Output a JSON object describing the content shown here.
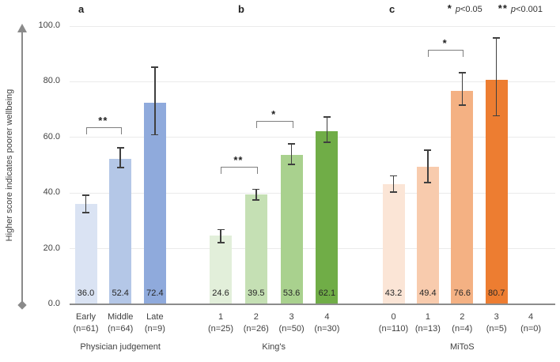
{
  "figure": {
    "panel_labels": [
      "a",
      "b",
      "c"
    ],
    "legend": {
      "items": [
        {
          "stars": "*",
          "p": "p",
          "rest": "<0.05"
        },
        {
          "stars": "**",
          "p": "p",
          "rest": "<0.001"
        }
      ]
    },
    "y_axis": {
      "title": "Higher score indicates poorer wellbeing",
      "ticks": [
        {
          "label": "0.0",
          "value": 0
        },
        {
          "label": "20.0",
          "value": 20
        },
        {
          "label": "40.0",
          "value": 40
        },
        {
          "label": "60.0",
          "value": 60
        },
        {
          "label": "80.0",
          "value": 80
        },
        {
          "label": "100.0",
          "value": 100
        }
      ]
    }
  },
  "chart_data": {
    "type": "bar",
    "ylabel": "Higher score indicates poorer wellbeing",
    "ylim": [
      0,
      100
    ],
    "grid": true,
    "legend_notes": [
      "* p<0.05",
      "** p<0.001"
    ],
    "value_labels_shown": true,
    "groups": [
      {
        "name": "Physician judgement",
        "bars": [
          {
            "category": "Early",
            "n": "(n=61)",
            "value": 36.0,
            "err_up": 3.2,
            "err_down": 3.0,
            "color": "#dae3f3"
          },
          {
            "category": "Middle",
            "n": "(n=64)",
            "value": 52.4,
            "err_up": 3.8,
            "err_down": 3.3,
            "color": "#b4c7e7"
          },
          {
            "category": "Late",
            "n": "(n=9)",
            "value": 72.4,
            "err_up": 12.8,
            "err_down": 11.5,
            "color": "#8faadc"
          }
        ]
      },
      {
        "name": "King's",
        "bars": [
          {
            "category": "1",
            "n": "(n=25)",
            "value": 24.6,
            "err_up": 2.2,
            "err_down": 2.4,
            "color": "#e2efda"
          },
          {
            "category": "2",
            "n": "(n=26)",
            "value": 39.5,
            "err_up": 1.8,
            "err_down": 2.0,
            "color": "#c5e0b4"
          },
          {
            "category": "3",
            "n": "(n=50)",
            "value": 53.6,
            "err_up": 4.1,
            "err_down": 3.3,
            "color": "#a9d18e"
          },
          {
            "category": "4",
            "n": "(n=30)",
            "value": 62.1,
            "err_up": 5.2,
            "err_down": 3.9,
            "color": "#70ad47"
          }
        ]
      },
      {
        "name": "MiToS",
        "bars": [
          {
            "category": "0",
            "n": "(n=110)",
            "value": 43.2,
            "err_up": 2.9,
            "err_down": 2.9,
            "color": "#fbe5d6"
          },
          {
            "category": "1",
            "n": "(n=13)",
            "value": 49.4,
            "err_up": 6.0,
            "err_down": 5.6,
            "color": "#f8cbad"
          },
          {
            "category": "2",
            "n": "(n=4)",
            "value": 76.6,
            "err_up": 6.6,
            "err_down": 5.0,
            "color": "#f4b183"
          },
          {
            "category": "3",
            "n": "(n=5)",
            "value": 80.7,
            "err_up": 15.0,
            "err_down": 13.0,
            "color": "#ed7d31"
          },
          {
            "category": "4",
            "n": "(n=0)",
            "value": null
          }
        ]
      }
    ],
    "significance_brackets": [
      {
        "group": 0,
        "from": 0,
        "to": 1,
        "label": "**",
        "y": 63.5
      },
      {
        "group": 1,
        "from": 0,
        "to": 1,
        "label": "**",
        "y": 49.5
      },
      {
        "group": 1,
        "from": 1,
        "to": 2,
        "label": "*",
        "y": 66.0
      },
      {
        "group": 2,
        "from": 1,
        "to": 2,
        "label": "*",
        "y": 91.5
      }
    ]
  }
}
